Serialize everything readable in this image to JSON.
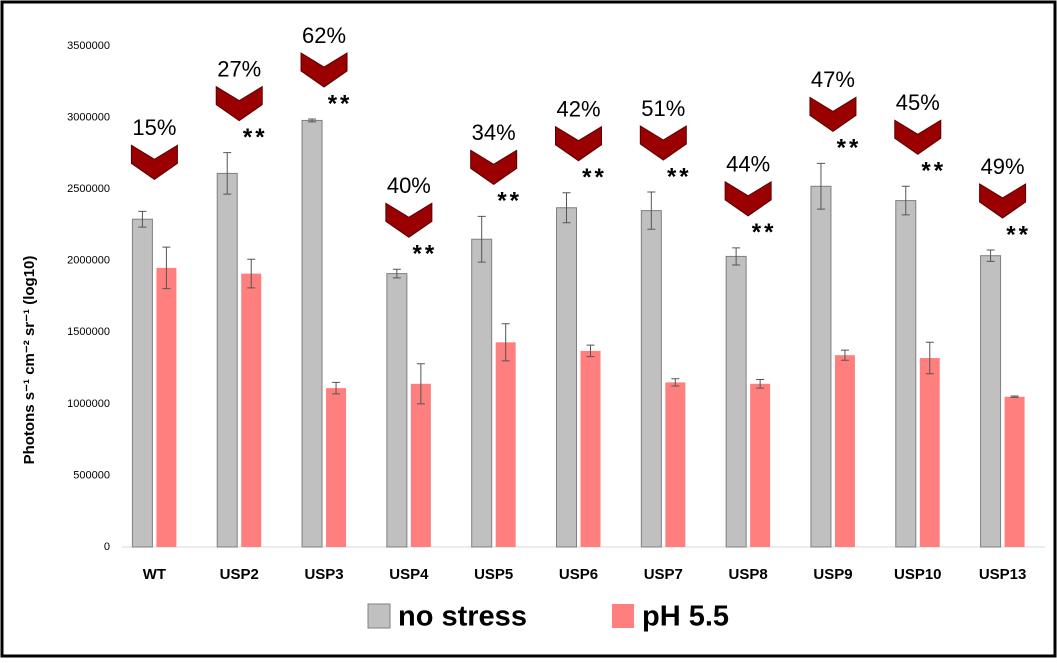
{
  "chart_data": {
    "type": "bar",
    "ylabel": "Photons s⁻¹ cm⁻² sr⁻¹ (log10)",
    "categories": [
      "WT",
      "USP2",
      "USP3",
      "USP4",
      "USP5",
      "USP6",
      "USP7",
      "USP8",
      "USP9",
      "USP10",
      "USP13"
    ],
    "series": [
      {
        "name": "no stress",
        "color": "#c0c0c0",
        "values": [
          2290000,
          2610000,
          2980000,
          1910000,
          2150000,
          2370000,
          2350000,
          2030000,
          2520000,
          2420000,
          2035000
        ],
        "errors": [
          55000,
          145000,
          10000,
          30000,
          160000,
          105000,
          130000,
          60000,
          160000,
          100000,
          40000
        ]
      },
      {
        "name": "pH 5.5",
        "color": "#ff7f7f",
        "values": [
          1950000,
          1910000,
          1110000,
          1140000,
          1430000,
          1370000,
          1150000,
          1140000,
          1340000,
          1320000,
          1050000
        ],
        "errors": [
          145000,
          100000,
          40000,
          140000,
          130000,
          40000,
          25000,
          30000,
          35000,
          110000,
          5000
        ]
      }
    ],
    "annotations": [
      "15%",
      "27%",
      "62%",
      "40%",
      "34%",
      "42%",
      "51%",
      "44%",
      "47%",
      "45%",
      "49%"
    ],
    "significance": [
      null,
      "**",
      "**",
      "**",
      "**",
      "**",
      "**",
      "**",
      "**",
      "**",
      "**"
    ],
    "annotation_color": "#9b0000",
    "ylim": [
      0,
      3500000
    ],
    "yticks": [
      0,
      500000,
      1000000,
      1500000,
      2000000,
      2500000,
      3000000,
      3500000
    ],
    "grid": false,
    "legend": "bottom"
  }
}
